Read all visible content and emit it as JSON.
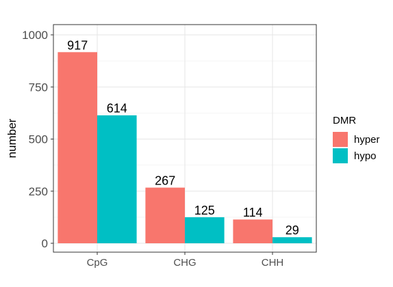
{
  "chart_data": {
    "type": "bar",
    "categories": [
      "CpG",
      "CHG",
      "CHH"
    ],
    "series": [
      {
        "name": "hyper",
        "color": "#F8766D",
        "values": [
          917,
          267,
          114
        ]
      },
      {
        "name": "hypo",
        "color": "#00BFC4",
        "values": [
          614,
          125,
          29
        ]
      }
    ],
    "data_labels": [
      [
        "917",
        "267",
        "114"
      ],
      [
        "614",
        "125",
        "29"
      ]
    ],
    "title": "",
    "xlabel": "",
    "ylabel": "number",
    "ylim": [
      0,
      1000
    ],
    "yticks": [
      0,
      250,
      500,
      750,
      1000
    ],
    "ytick_labels": [
      "0",
      "250",
      "500",
      "750",
      "1000"
    ],
    "grid": true,
    "legend": {
      "title": "DMR",
      "position": "right"
    }
  }
}
